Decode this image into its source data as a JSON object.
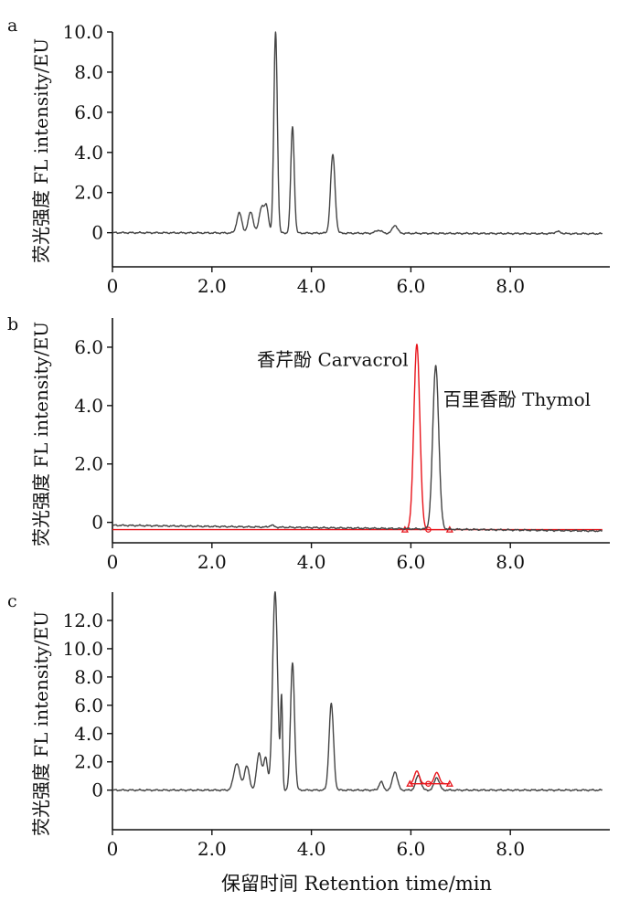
{
  "x_axis_label": "保留时间  Retention time/min",
  "chart_data": [
    {
      "type": "line",
      "panel": "a",
      "ylabel": "荧光强度  FL intensity/EU",
      "xlim": [
        0,
        10
      ],
      "ylim": [
        -1.7,
        10
      ],
      "x_ticks": [
        0,
        2,
        4,
        6,
        8
      ],
      "x_tick_labels": [
        "0",
        "2.0",
        "4.0",
        "6.0",
        "8.0"
      ],
      "y_ticks": [
        0,
        2,
        4,
        6,
        8,
        10
      ],
      "y_tick_labels": [
        "0",
        "2.0",
        "4.0",
        "6.0",
        "8.0",
        "10.0"
      ],
      "series": [
        {
          "color": "#444444",
          "peaks": [
            {
              "x": 2.55,
              "h": 1.0,
              "w": 0.05
            },
            {
              "x": 2.78,
              "h": 1.05,
              "w": 0.05
            },
            {
              "x": 3.0,
              "h": 1.3,
              "w": 0.05
            },
            {
              "x": 3.1,
              "h": 1.2,
              "w": 0.04
            },
            {
              "x": 3.28,
              "h": 10.0,
              "w": 0.035
            },
            {
              "x": 3.62,
              "h": 5.3,
              "w": 0.035
            },
            {
              "x": 4.43,
              "h": 3.9,
              "w": 0.045
            },
            {
              "x": 5.35,
              "h": 0.15,
              "w": 0.06
            },
            {
              "x": 5.68,
              "h": 0.4,
              "w": 0.05
            },
            {
              "x": 8.95,
              "h": 0.1,
              "w": 0.06
            }
          ],
          "baseline_start": 0.0,
          "baseline_end": -0.05
        }
      ]
    },
    {
      "type": "line",
      "panel": "b",
      "ylabel": "荧光强度  FL intensity/EU",
      "xlim": [
        0,
        10
      ],
      "ylim": [
        -0.7,
        7.0
      ],
      "x_ticks": [
        0,
        2,
        4,
        6,
        8
      ],
      "x_tick_labels": [
        "0",
        "2.0",
        "4.0",
        "6.0",
        "8.0"
      ],
      "y_ticks": [
        0,
        2,
        4,
        6
      ],
      "y_tick_labels": [
        "0",
        "2.0",
        "4.0",
        "6.0"
      ],
      "annotations": [
        {
          "text": "香芹酚  Carvacrol",
          "x": 5.95,
          "y": 5.35,
          "anchor": "end"
        },
        {
          "text": "百里香酚  Thymol",
          "x": 6.65,
          "y": 4.0,
          "anchor": "start"
        }
      ],
      "series": [
        {
          "name": "香芹酚  Carvacrol",
          "color": "#e8141b",
          "peaks": [
            {
              "x": 6.12,
              "h": 6.35,
              "w": 0.06
            }
          ],
          "baseline_start": -0.25,
          "baseline_end": -0.25,
          "markers": [
            5.88,
            6.35,
            6.78
          ]
        },
        {
          "name": "百里香酚  Thymol",
          "color": "#444444",
          "peaks": [
            {
              "x": 3.2,
              "h": 0.07,
              "w": 0.04
            },
            {
              "x": 6.5,
              "h": 5.6,
              "w": 0.06
            }
          ],
          "baseline_start": -0.1,
          "baseline_end": -0.3
        }
      ]
    },
    {
      "type": "line",
      "panel": "c",
      "ylabel": "荧光强度  FL intensity/EU",
      "xlim": [
        0,
        10
      ],
      "ylim": [
        -2.8,
        14.0
      ],
      "x_ticks": [
        0,
        2,
        4,
        6,
        8
      ],
      "x_tick_labels": [
        "0",
        "2.0",
        "4.0",
        "6.0",
        "8.0"
      ],
      "y_ticks": [
        0,
        2,
        4,
        6,
        8,
        10,
        12
      ],
      "y_tick_labels": [
        "0",
        "2.0",
        "4.0",
        "6.0",
        "8.0",
        "10.0",
        "12.0"
      ],
      "series": [
        {
          "color": "#444444",
          "peaks": [
            {
              "x": 2.5,
              "h": 1.9,
              "w": 0.06
            },
            {
              "x": 2.7,
              "h": 1.7,
              "w": 0.05
            },
            {
              "x": 2.95,
              "h": 2.6,
              "w": 0.05
            },
            {
              "x": 3.08,
              "h": 2.2,
              "w": 0.04
            },
            {
              "x": 3.27,
              "h": 14.0,
              "w": 0.05
            },
            {
              "x": 3.4,
              "h": 6.3,
              "w": 0.02
            },
            {
              "x": 3.62,
              "h": 9.0,
              "w": 0.04
            },
            {
              "x": 4.4,
              "h": 6.1,
              "w": 0.045
            },
            {
              "x": 5.4,
              "h": 0.6,
              "w": 0.04
            },
            {
              "x": 5.68,
              "h": 1.3,
              "w": 0.05
            },
            {
              "x": 6.15,
              "h": 1.05,
              "w": 0.05
            },
            {
              "x": 6.52,
              "h": 0.9,
              "w": 0.05
            }
          ],
          "baseline_start": 0.0,
          "baseline_end": 0.0
        },
        {
          "color": "#e8141b",
          "peaks": [
            {
              "x": 6.12,
              "h": 0.9,
              "w": 0.05
            },
            {
              "x": 6.52,
              "h": 0.8,
              "w": 0.05
            }
          ],
          "baseline_start": 0.45,
          "baseline_end": 0.45,
          "range": [
            5.98,
            6.78
          ],
          "markers": [
            5.98,
            6.35,
            6.78
          ]
        }
      ]
    }
  ]
}
